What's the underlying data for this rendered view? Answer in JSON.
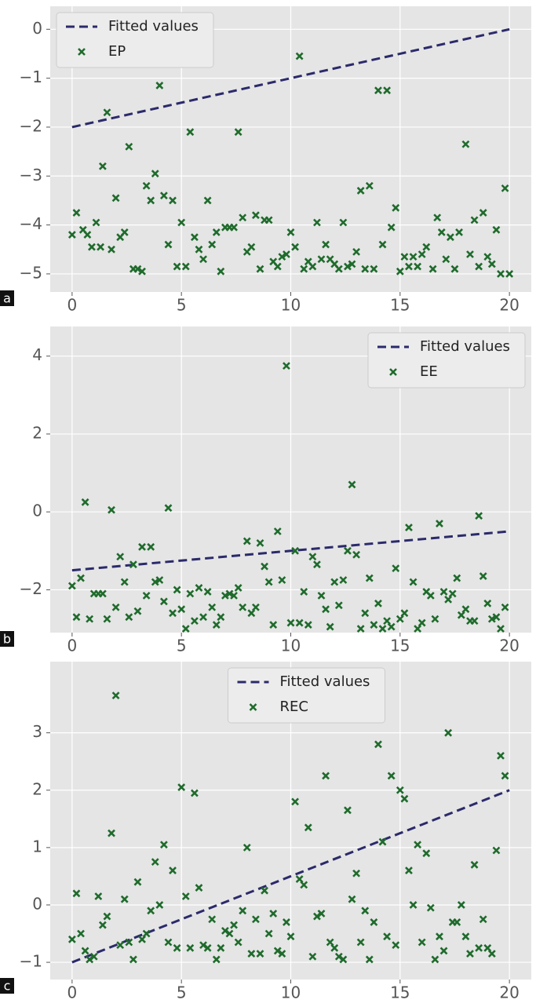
{
  "chart_data": [
    {
      "type": "scatter",
      "panel_label": "a",
      "legend": "upper left",
      "grid": true,
      "xlim": [
        -1,
        21
      ],
      "ylim": [
        -5.37,
        0.47
      ],
      "xticks": [
        0,
        5,
        10,
        15,
        20
      ],
      "yticks": [
        {
          "value": -5,
          "label": "−5"
        },
        {
          "value": -4,
          "label": "−4"
        },
        {
          "value": -3,
          "label": "−3"
        },
        {
          "value": -2,
          "label": "−2"
        },
        {
          "value": -1,
          "label": "−1"
        },
        0
      ],
      "series": [
        {
          "name": "Fitted values",
          "kind": "line",
          "color": "#2b2a6b",
          "x": [
            0,
            20
          ],
          "values": [
            -2,
            0
          ]
        },
        {
          "name": "EP",
          "kind": "marker",
          "color": "#1f6b2c",
          "x": [
            0,
            0.2,
            0.5,
            0.7,
            0.9,
            1.1,
            1.3,
            1.4,
            1.6,
            1.8,
            2,
            2.2,
            2.4,
            2.6,
            2.8,
            3,
            3.2,
            3.4,
            3.6,
            3.8,
            4,
            4.2,
            4.4,
            4.6,
            4.8,
            5,
            5.2,
            5.4,
            5.6,
            5.8,
            6,
            6.2,
            6.4,
            6.6,
            6.8,
            7,
            7.2,
            7.4,
            7.6,
            7.8,
            8,
            8.2,
            8.4,
            8.6,
            8.8,
            9,
            9.2,
            9.4,
            9.6,
            9.8,
            10,
            10.2,
            10.4,
            10.6,
            10.8,
            11,
            11.2,
            11.4,
            11.6,
            11.8,
            12,
            12.2,
            12.4,
            12.6,
            12.8,
            13,
            13.2,
            13.4,
            13.6,
            13.8,
            14,
            14.2,
            14.4,
            14.6,
            14.8,
            15,
            15.2,
            15.4,
            15.6,
            15.8,
            16,
            16.2,
            16.5,
            16.7,
            16.9,
            17.1,
            17.3,
            17.5,
            17.7,
            18,
            18.2,
            18.4,
            18.6,
            18.8,
            19,
            19.2,
            19.4,
            19.6,
            19.8,
            20
          ],
          "values": [
            -4.2,
            -3.75,
            -4.1,
            -4.2,
            -4.45,
            -3.95,
            -4.45,
            -2.8,
            -1.7,
            -4.5,
            -3.45,
            -4.25,
            -4.15,
            -2.4,
            -4.9,
            -4.9,
            -4.95,
            -3.2,
            -3.5,
            -2.95,
            -1.15,
            -3.4,
            -4.4,
            -3.5,
            -4.85,
            -3.95,
            -4.85,
            -2.1,
            -4.25,
            -4.5,
            -4.7,
            -3.5,
            -4.4,
            -4.15,
            -4.95,
            -4.05,
            -4.05,
            -4.05,
            -2.1,
            -3.85,
            -4.55,
            -4.45,
            -3.8,
            -4.9,
            -3.9,
            -3.9,
            -4.75,
            -4.85,
            -4.65,
            -4.6,
            -4.15,
            -4.45,
            -0.55,
            -4.9,
            -4.75,
            -4.85,
            -3.95,
            -4.7,
            -4.4,
            -4.7,
            -4.8,
            -4.9,
            -3.95,
            -4.85,
            -4.8,
            -4.55,
            -3.3,
            -4.9,
            -3.2,
            -4.9,
            -1.25,
            -4.4,
            -1.25,
            -4.05,
            -3.65,
            -4.95,
            -4.65,
            -4.85,
            -4.65,
            -4.85,
            -4.6,
            -4.45,
            -4.9,
            -3.85,
            -4.15,
            -4.7,
            -4.25,
            -4.9,
            -4.15,
            -2.35,
            -4.6,
            -3.9,
            -4.85,
            -3.75,
            -4.65,
            -4.8,
            -4.1,
            -5,
            -3.25,
            -5
          ]
        }
      ]
    },
    {
      "type": "scatter",
      "panel_label": "b",
      "legend": "upper right",
      "grid": true,
      "xlim": [
        -1,
        21
      ],
      "ylim": [
        -3.1,
        4.76
      ],
      "xticks": [
        0,
        5,
        10,
        15,
        20
      ],
      "yticks": [
        {
          "value": -2,
          "label": "−2"
        },
        0,
        2,
        4
      ],
      "series": [
        {
          "name": "Fitted values",
          "kind": "line",
          "color": "#2b2a6b",
          "x": [
            0,
            20
          ],
          "values": [
            -1.5,
            -0.5
          ]
        },
        {
          "name": "EE",
          "kind": "marker",
          "color": "#1f6b2c",
          "x": [
            0,
            0.2,
            0.4,
            0.6,
            0.8,
            1,
            1.2,
            1.4,
            1.6,
            1.8,
            2,
            2.2,
            2.4,
            2.6,
            2.8,
            3,
            3.2,
            3.4,
            3.6,
            3.8,
            4,
            4.2,
            4.4,
            4.6,
            4.8,
            5,
            5.2,
            5.4,
            5.6,
            5.8,
            6,
            6.2,
            6.4,
            6.6,
            6.8,
            7,
            7.2,
            7.4,
            7.6,
            7.8,
            8,
            8.2,
            8.4,
            8.6,
            8.8,
            9,
            9.2,
            9.4,
            9.6,
            9.8,
            10,
            10.2,
            10.4,
            10.6,
            10.8,
            11,
            11.2,
            11.4,
            11.6,
            11.8,
            12,
            12.2,
            12.4,
            12.6,
            12.8,
            13,
            13.2,
            13.4,
            13.6,
            13.8,
            14,
            14.2,
            14.4,
            14.6,
            14.8,
            15,
            15.2,
            15.4,
            15.6,
            15.8,
            16,
            16.2,
            16.4,
            16.6,
            16.8,
            17,
            17.2,
            17.4,
            17.6,
            17.8,
            18,
            18.2,
            18.4,
            18.6,
            18.8,
            19,
            19.2,
            19.4,
            19.6,
            19.8
          ],
          "values": [
            -1.9,
            -2.7,
            -1.7,
            0.25,
            -2.75,
            -2.1,
            -2.1,
            -2.1,
            -2.75,
            0.05,
            -2.45,
            -1.15,
            -1.8,
            -2.7,
            -1.35,
            -2.55,
            -0.9,
            -2.15,
            -0.9,
            -1.8,
            -1.75,
            -2.3,
            0.1,
            -2.6,
            -2,
            -2.5,
            -3,
            -2.1,
            -2.8,
            -1.95,
            -2.7,
            -2.05,
            -2.45,
            -2.9,
            -2.7,
            -2.15,
            -2.1,
            -2.15,
            -1.95,
            -2.45,
            -0.75,
            -2.6,
            -2.45,
            -0.8,
            -1.4,
            -1.8,
            -2.9,
            -0.5,
            -1.75,
            3.75,
            -2.85,
            -1,
            -2.85,
            -2.05,
            -2.9,
            -1.15,
            -1.35,
            -2.15,
            -2.5,
            -2.95,
            -1.8,
            -2.4,
            -1.75,
            -1,
            0.7,
            -1.1,
            -3,
            -2.6,
            -1.7,
            -2.9,
            -2.35,
            -3,
            -2.8,
            -2.95,
            -1.45,
            -2.75,
            -2.6,
            -0.4,
            -1.8,
            -3,
            -2.85,
            -2.05,
            -2.15,
            -2.75,
            -0.3,
            -2.05,
            -2.25,
            -2.1,
            -1.7,
            -2.65,
            -2.5,
            -2.8,
            -2.8,
            -0.1,
            -1.65,
            -2.35,
            -2.75,
            -2.7,
            -3,
            -2.45
          ]
        }
      ]
    },
    {
      "type": "scatter",
      "panel_label": "c",
      "legend": "upper center",
      "grid": true,
      "xlim": [
        -1,
        21
      ],
      "ylim": [
        -1.3,
        4.24
      ],
      "xticks": [
        0,
        5,
        10,
        15,
        20
      ],
      "yticks": [
        {
          "value": -1,
          "label": "−1"
        },
        0,
        1,
        2,
        3
      ],
      "series": [
        {
          "name": "Fitted values",
          "kind": "line",
          "color": "#2b2a6b",
          "x": [
            0,
            20
          ],
          "values": [
            -1,
            2
          ]
        },
        {
          "name": "REC",
          "kind": "marker",
          "color": "#1f6b2c",
          "x": [
            0,
            0.2,
            0.4,
            0.6,
            0.8,
            1,
            1.2,
            1.4,
            1.6,
            1.8,
            2,
            2.2,
            2.4,
            2.6,
            2.8,
            3,
            3.2,
            3.4,
            3.6,
            3.8,
            4,
            4.2,
            4.4,
            4.6,
            4.8,
            5,
            5.2,
            5.4,
            5.6,
            5.8,
            6,
            6.2,
            6.4,
            6.6,
            6.8,
            7,
            7.2,
            7.4,
            7.6,
            7.8,
            8,
            8.2,
            8.4,
            8.6,
            8.8,
            9,
            9.2,
            9.4,
            9.6,
            9.8,
            10,
            10.2,
            10.4,
            10.6,
            10.8,
            11,
            11.2,
            11.4,
            11.6,
            11.8,
            12,
            12.2,
            12.4,
            12.6,
            12.8,
            13,
            13.2,
            13.4,
            13.6,
            13.8,
            14,
            14.2,
            14.4,
            14.6,
            14.8,
            15,
            15.2,
            15.4,
            15.6,
            15.8,
            16,
            16.2,
            16.4,
            16.6,
            16.8,
            17,
            17.2,
            17.4,
            17.6,
            17.8,
            18,
            18.2,
            18.4,
            18.6,
            18.8,
            19,
            19.2,
            19.4,
            19.6,
            19.8
          ],
          "values": [
            -0.6,
            0.2,
            -0.5,
            -0.8,
            -0.95,
            -0.9,
            0.15,
            -0.35,
            -0.2,
            1.25,
            3.65,
            -0.7,
            0.1,
            -0.65,
            -0.95,
            0.4,
            -0.6,
            -0.5,
            -0.1,
            0.75,
            0,
            1.05,
            -0.65,
            0.6,
            -0.75,
            2.05,
            0.15,
            -0.75,
            1.95,
            0.3,
            -0.7,
            -0.75,
            -0.25,
            -0.95,
            -0.75,
            -0.45,
            -0.5,
            -0.35,
            -0.65,
            -0.1,
            1,
            -0.85,
            -0.25,
            -0.85,
            0.25,
            -0.5,
            -0.15,
            -0.8,
            -0.85,
            -0.3,
            -0.55,
            1.8,
            0.45,
            0.35,
            1.35,
            -0.9,
            -0.2,
            -0.15,
            2.25,
            -0.65,
            -0.75,
            -0.9,
            -0.95,
            1.65,
            0.1,
            0.55,
            -0.65,
            -0.1,
            -0.95,
            -0.3,
            2.8,
            1.1,
            -0.55,
            2.25,
            -0.7,
            2,
            1.85,
            0.6,
            0,
            1.05,
            -0.65,
            0.9,
            -0.05,
            -0.95,
            -0.55,
            -0.8,
            3,
            -0.3,
            -0.3,
            0,
            -0.55,
            -0.85,
            0.7,
            -0.75,
            -0.25,
            -0.75,
            -0.85,
            0.95,
            2.6,
            2.25
          ]
        }
      ]
    }
  ]
}
